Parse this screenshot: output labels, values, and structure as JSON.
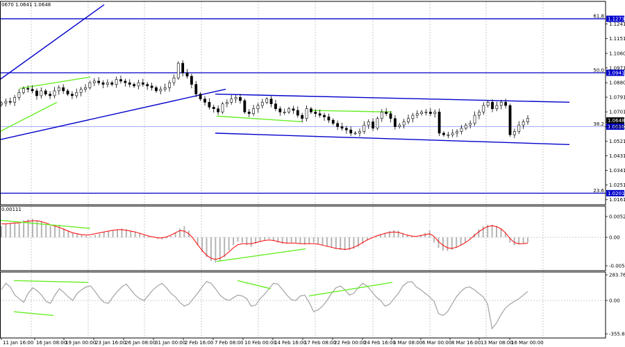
{
  "chart_data": {
    "type": "candlestick",
    "header": "0670 1.0641 1.0648",
    "price_panel": {
      "ylim": [
        1.013,
        1.138
      ],
      "price_ticks": [
        "1.1241",
        "1.1151",
        "1.1060",
        "1.0971",
        "1.0880",
        "1.0791",
        "1.0701",
        "1.0610",
        "1.0521",
        "1.0431",
        "1.0341",
        "1.0251",
        "1.0161"
      ],
      "current_price": "1.0648",
      "fib_levels": [
        {
          "name": "61.8",
          "value": 1.1273,
          "label": "1.1273"
        },
        {
          "name": "50.0",
          "value": 1.0941,
          "label": "1.0941"
        },
        {
          "name": "38.2",
          "value": 1.061,
          "label": "1.0610"
        },
        {
          "name": "23.6",
          "value": 1.0201,
          "label": "1.0201"
        }
      ],
      "trendlines": [
        {
          "color": "#0000cc",
          "points": [
            [
              0,
              1.09
            ],
            [
              150,
              1.136
            ]
          ]
        },
        {
          "color": "#0000cc",
          "points": [
            [
              0,
              1.053
            ],
            [
              325,
              1.084
            ]
          ]
        },
        {
          "color": "#0000cc",
          "points": [
            [
              310,
              1.081
            ],
            [
              820,
              1.076
            ]
          ]
        },
        {
          "color": "#0000cc",
          "points": [
            [
              310,
              1.057
            ],
            [
              820,
              1.05
            ]
          ]
        },
        {
          "color": "#66ee22",
          "points": [
            [
              28,
              1.0845
            ],
            [
              130,
              1.0915
            ]
          ]
        },
        {
          "color": "#66ee22",
          "points": [
            [
              0,
              1.058
            ],
            [
              82,
              1.076
            ]
          ]
        },
        {
          "color": "#66ee22",
          "points": [
            [
              312,
              1.0675
            ],
            [
              435,
              1.064
            ]
          ]
        },
        {
          "color": "#66ee22",
          "points": [
            [
              448,
              1.071
            ],
            [
              565,
              1.07
            ]
          ]
        }
      ],
      "close": [
        1.0755,
        1.0765,
        1.076,
        1.079,
        1.082,
        1.0845,
        1.084,
        1.083,
        1.08,
        1.083,
        1.081,
        1.08,
        1.083,
        1.085,
        1.083,
        1.081,
        1.08,
        1.082,
        1.084,
        1.085,
        1.088,
        1.089,
        1.088,
        1.087,
        1.088,
        1.087,
        1.09,
        1.089,
        1.088,
        1.087,
        1.086,
        1.088,
        1.087,
        1.086,
        1.085,
        1.083,
        1.084,
        1.085,
        1.088,
        1.091,
        1.1,
        1.094,
        1.092,
        1.087,
        1.081,
        1.078,
        1.076,
        1.073,
        1.072,
        1.07,
        1.075,
        1.076,
        1.078,
        1.079,
        1.077,
        1.07,
        1.069,
        1.072,
        1.074,
        1.076,
        1.078,
        1.075,
        1.072,
        1.07,
        1.07,
        1.072,
        1.071,
        1.068,
        1.066,
        1.072,
        1.07,
        1.069,
        1.068,
        1.067,
        1.065,
        1.063,
        1.061,
        1.06,
        1.059,
        1.057,
        1.057,
        1.058,
        1.062,
        1.064,
        1.06,
        1.066,
        1.07,
        1.069,
        1.066,
        1.061,
        1.062,
        1.064,
        1.066,
        1.068,
        1.069,
        1.07,
        1.07,
        1.069,
        1.07,
        1.057,
        1.056,
        1.056,
        1.057,
        1.058,
        1.06,
        1.062,
        1.063,
        1.068,
        1.07,
        1.074,
        1.076,
        1.072,
        1.074,
        1.076,
        1.074,
        1.056,
        1.058,
        1.062,
        1.064,
        1.066
      ]
    },
    "macd_panel": {
      "label": "0.00111",
      "ticks": [
        "0.00526",
        "0.00",
        "-0.00543"
      ],
      "ylim": [
        -0.00543,
        0.00526
      ],
      "hist": [
        0.0025,
        0.003,
        0.0032,
        0.0033,
        0.003,
        0.0038,
        0.004,
        0.0041,
        0.0038,
        0.0035,
        0.003,
        0.0026,
        0.0025,
        0.0028,
        0.002,
        0.0015,
        0.001,
        0.0008,
        0.0005,
        0.0003,
        0.0002,
        0.0005,
        0.0008,
        0.0011,
        0.0013,
        0.0015,
        0.0018,
        0.002,
        0.0018,
        0.0015,
        0.0012,
        0.001,
        0.0005,
        0.0002,
        0.0,
        -0.0003,
        -0.0004,
        -0.0002,
        0.0003,
        0.001,
        0.002,
        0.0025,
        0.0015,
        0.0,
        -0.0015,
        -0.0028,
        -0.0038,
        -0.0045,
        -0.0048,
        -0.0045,
        -0.0038,
        -0.0025,
        -0.0015,
        -0.0008,
        -0.001,
        -0.0015,
        -0.0018,
        -0.0012,
        -0.0008,
        -0.0005,
        -0.0003,
        -0.0006,
        -0.001,
        -0.0012,
        -0.0012,
        -0.001,
        -0.001,
        -0.0012,
        -0.0014,
        -0.0012,
        -0.001,
        -0.0012,
        -0.0015,
        -0.0018,
        -0.002,
        -0.0022,
        -0.0024,
        -0.0025,
        -0.0024,
        -0.0022,
        -0.0018,
        -0.0012,
        -0.0006,
        -0.0002,
        0.0002,
        0.0006,
        0.001,
        0.0014,
        0.0016,
        0.0015,
        0.001,
        0.0006,
        0.0002,
        0.0,
        0.0005,
        0.001,
        0.0015,
        -0.001,
        -0.002,
        -0.0025,
        -0.0026,
        -0.0024,
        -0.002,
        -0.0015,
        -0.001,
        -0.0002,
        0.0008,
        0.0018,
        0.0025,
        0.0028,
        0.0028,
        0.0025,
        0.002,
        0.001,
        -0.001,
        -0.0015,
        -0.0014,
        -0.0012,
        -0.001
      ],
      "signal": [
        0.003,
        0.003,
        0.0031,
        0.0032,
        0.0032,
        0.0034,
        0.0036,
        0.0037,
        0.0037,
        0.0035,
        0.0032,
        0.0028,
        0.0025,
        0.0022,
        0.0018,
        0.0014,
        0.001,
        0.0008,
        0.0006,
        0.0005,
        0.0006,
        0.0008,
        0.001,
        0.0012,
        0.0014,
        0.0016,
        0.0017,
        0.0017,
        0.0016,
        0.0014,
        0.0012,
        0.0009,
        0.0006,
        0.0003,
        0.0001,
        -0.0001,
        -0.0001,
        0.0001,
        0.0005,
        0.001,
        0.0015,
        0.0014,
        0.0008,
        -0.0002,
        -0.0014,
        -0.0025,
        -0.0034,
        -0.004,
        -0.0042,
        -0.004,
        -0.0035,
        -0.0028,
        -0.002,
        -0.0014,
        -0.0012,
        -0.0012,
        -0.0012,
        -0.001,
        -0.0008,
        -0.0006,
        -0.0005,
        -0.0006,
        -0.0008,
        -0.001,
        -0.0011,
        -0.0011,
        -0.0011,
        -0.0012,
        -0.0012,
        -0.0012,
        -0.0012,
        -0.0013,
        -0.0015,
        -0.0017,
        -0.0019,
        -0.0021,
        -0.0022,
        -0.0023,
        -0.0022,
        -0.0019,
        -0.0015,
        -0.001,
        -0.0005,
        -0.0001,
        0.0003,
        0.0006,
        0.0009,
        0.0011,
        0.0012,
        0.0011,
        0.0008,
        0.0005,
        0.0003,
        0.0002,
        0.0004,
        0.0006,
        0.0008,
        0.0002,
        -0.0008,
        -0.0015,
        -0.002,
        -0.0021,
        -0.0019,
        -0.0015,
        -0.001,
        -0.0004,
        0.0004,
        0.0012,
        0.0019,
        0.0024,
        0.0026,
        0.0024,
        0.0019,
        0.001,
        -0.0002,
        -0.001,
        -0.0012,
        -0.0012,
        -0.0011
      ]
    },
    "cci_panel": {
      "ticks": [
        "283.7669",
        "0.00",
        "-355.880"
      ],
      "ylim": [
        -355.88,
        283.7669
      ],
      "values": [
        120,
        190,
        150,
        60,
        20,
        -20,
        80,
        140,
        110,
        60,
        -10,
        -30,
        60,
        130,
        90,
        40,
        0,
        80,
        120,
        150,
        160,
        100,
        30,
        -20,
        -30,
        40,
        100,
        150,
        180,
        120,
        60,
        20,
        0,
        60,
        120,
        160,
        190,
        140,
        80,
        40,
        -20,
        -60,
        -40,
        20,
        80,
        150,
        210,
        190,
        130,
        60,
        20,
        0,
        30,
        60,
        50,
        20,
        -60,
        -50,
        20,
        70,
        130,
        190,
        180,
        120,
        60,
        10,
        0,
        50,
        60,
        -20,
        -120,
        -100,
        -60,
        0,
        80,
        140,
        160,
        120,
        60,
        80,
        140,
        190,
        160,
        100,
        40,
        0,
        -60,
        -40,
        20,
        80,
        160,
        200,
        210,
        150,
        120,
        80,
        40,
        -10,
        -140,
        -160,
        -120,
        -40,
        40,
        100,
        140,
        150,
        120,
        80,
        40,
        -40,
        -300,
        -240,
        -150,
        -80,
        -40,
        -10,
        20,
        60,
        100
      ]
    },
    "x_tick_labels": [
      "11 Jan 16:00",
      "16 Jan 08:00",
      "19 Jan 00:00",
      "23 Jan 16:00",
      "26 Jan 08:00",
      "31 Jan 00:00",
      "2 Feb 16:00",
      "7 Feb 08:00",
      "10 Feb 00:00",
      "14 Feb 16:00",
      "17 Feb 08:00",
      "22 Feb 00:00",
      "24 Feb 16:00",
      "1 Mar 08:00",
      "6 Mar 00:00",
      "8 Mar 16:00",
      "13 Mar 08:00",
      "16 Mar 00:00"
    ]
  }
}
